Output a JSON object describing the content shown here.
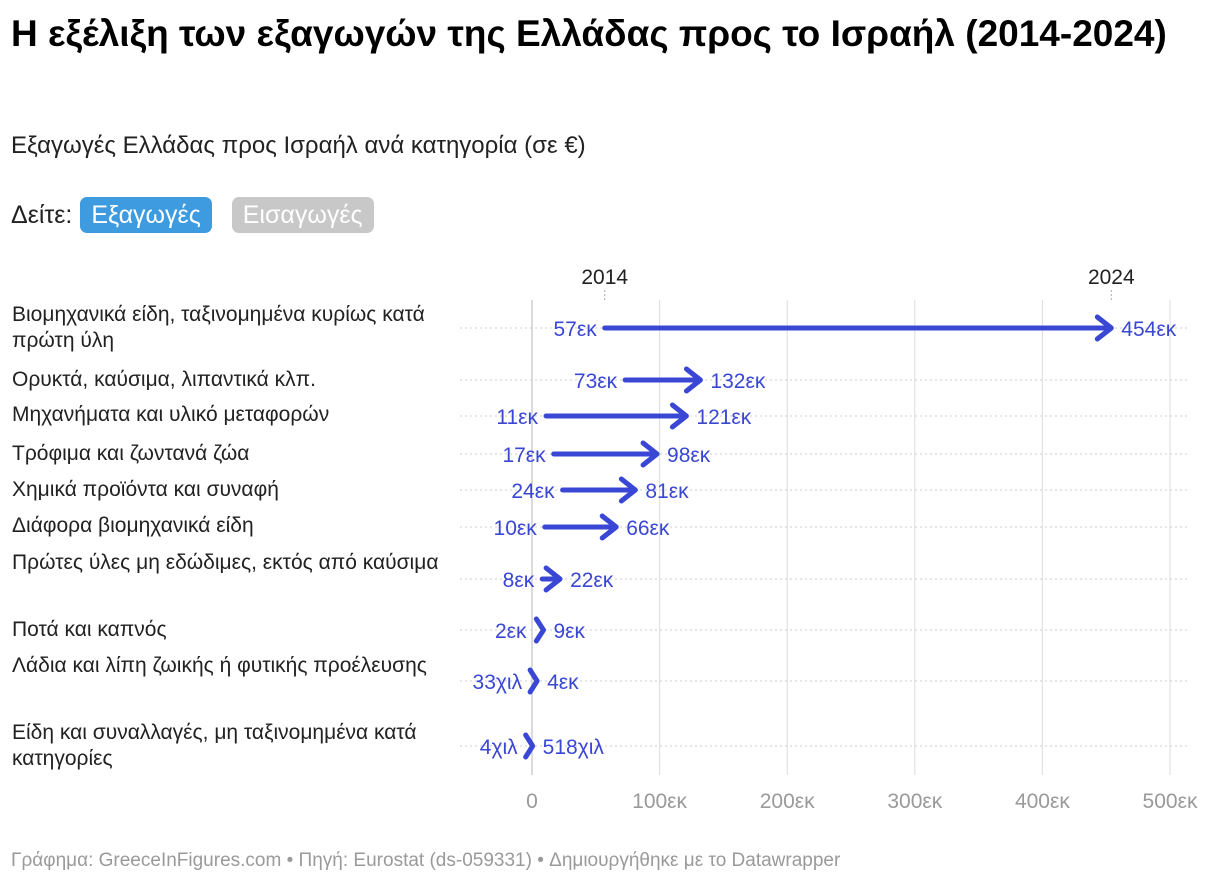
{
  "title": "Η εξέλιξη των εξαγωγών της Ελλάδας προς το Ισραήλ (2014-2024)",
  "subtitle": "Εξαγωγές Ελλάδας προς Ισραήλ ανά κατηγορία (σε €)",
  "toggle": {
    "label": "Δείτε:",
    "options": [
      "Εξαγωγές",
      "Εισαγωγές"
    ],
    "selected": "Εξαγωγές"
  },
  "footer": "Γράφημα: GreeceInFigures.com • Πηγή: Eurostat (ds-059331) • Δημιουργήθηκε με το Datawrapper",
  "colors": {
    "arrow": "#3a47d4",
    "grid": "#dddddd",
    "axis_text": "#9a9a9a",
    "active_button": "#3e9be0",
    "inactive_button": "#c8c8c8"
  },
  "chart_data": {
    "type": "arrow",
    "series_names": [
      "2014",
      "2024"
    ],
    "xlim": [
      0,
      500
    ],
    "x_ticks": [
      0,
      100,
      200,
      300,
      400,
      500
    ],
    "x_tick_labels": [
      "0",
      "100εκ",
      "200εκ",
      "300εκ",
      "400εκ",
      "500εκ"
    ],
    "unit": "εκ €",
    "categories": [
      {
        "label": "Βιομηχανικά είδη, ταξινομημένα κυρίως κατά πρώτη ύλη",
        "v2014": 57,
        "v2024": 454,
        "label2014": "57εκ",
        "label2024": "454εκ"
      },
      {
        "label": "Ορυκτά, καύσιμα, λιπαντικά κλπ.",
        "v2014": 73,
        "v2024": 132,
        "label2014": "73εκ",
        "label2024": "132εκ"
      },
      {
        "label": "Μηχανήματα και υλικό μεταφορών",
        "v2014": 11,
        "v2024": 121,
        "label2014": "11εκ",
        "label2024": "121εκ"
      },
      {
        "label": "Τρόφιμα και ζωντανά ζώα",
        "v2014": 17,
        "v2024": 98,
        "label2014": "17εκ",
        "label2024": "98εκ"
      },
      {
        "label": "Χημικά προϊόντα και συναφή",
        "v2014": 24,
        "v2024": 81,
        "label2014": "24εκ",
        "label2024": "81εκ"
      },
      {
        "label": "Διάφορα βιομηχανικά είδη",
        "v2014": 10,
        "v2024": 66,
        "label2014": "10εκ",
        "label2024": "66εκ"
      },
      {
        "label": "Πρώτες ύλες μη εδώδιμες, εκτός από καύσιμα",
        "v2014": 8,
        "v2024": 22,
        "label2014": "8εκ",
        "label2024": "22εκ"
      },
      {
        "label": "Ποτά και καπνός",
        "v2014": 2,
        "v2024": 9,
        "label2014": "2εκ",
        "label2024": "9εκ"
      },
      {
        "label": "Λάδια και λίπη ζωικής ή φυτικής προέλευσης",
        "v2014": 0.033,
        "v2024": 4,
        "label2014": "33χιλ",
        "label2024": "4εκ"
      },
      {
        "label": "Είδη και συναλλαγές, μη ταξινομημένα κατά κατηγορίες",
        "v2014": 0.004,
        "v2024": 0.518,
        "label2014": "4χιλ",
        "label2024": "518χιλ"
      }
    ]
  }
}
